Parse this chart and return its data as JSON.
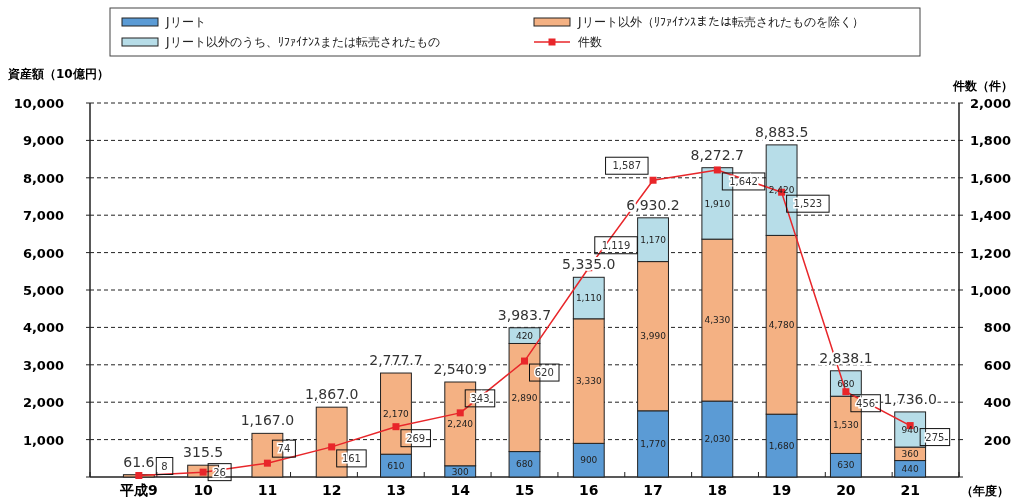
{
  "chart_data": {
    "type": "bar",
    "stacked": true,
    "categories": [
      "平成9",
      "10",
      "11",
      "12",
      "13",
      "14",
      "15",
      "16",
      "17",
      "18",
      "19",
      "20",
      "21"
    ],
    "series": [
      {
        "name": "Jリート",
        "color": "#5b9bd5",
        "values": [
          null,
          null,
          null,
          null,
          610,
          300,
          680,
          900,
          1770,
          2030,
          1680,
          630,
          440
        ],
        "value_labels": [
          null,
          null,
          null,
          null,
          "610",
          "300",
          "680",
          "900",
          "1,770",
          "2,030",
          "1,680",
          "630",
          "440"
        ]
      },
      {
        "name": "Jリート以外（ﾘﾌｧｲﾅﾝｽまたは転売されたものを除く）",
        "color": "#f4b183",
        "values": [
          61.6,
          315.5,
          1167,
          1867,
          2170,
          2240,
          2890,
          3330,
          3990,
          4330,
          4780,
          1530,
          360
        ],
        "value_labels": [
          null,
          null,
          null,
          null,
          "2,170",
          "2,240",
          "2,890",
          "3,330",
          "3,990",
          "4,330",
          "4,780",
          "1,530",
          "360"
        ]
      },
      {
        "name": "Jリート以外のうち、ﾘﾌｧｲﾅﾝｽまたは転売されたもの",
        "color": "#b7dde8",
        "values": [
          null,
          null,
          null,
          null,
          null,
          null,
          420,
          1110,
          1170,
          1910,
          2420,
          680,
          940
        ],
        "value_labels": [
          null,
          null,
          null,
          null,
          null,
          null,
          "420",
          "1,110",
          "1,170",
          "1,910",
          "2,420",
          "680",
          "940"
        ]
      },
      {
        "name": "件数",
        "type": "line",
        "axis": "y2",
        "color": "#e8262a",
        "marker": "square",
        "values": [
          8,
          26,
          74,
          161,
          269,
          343,
          620,
          1119,
          1587,
          1642,
          1523,
          456,
          275
        ],
        "value_labels": [
          "8",
          "26",
          "74",
          "161",
          "269",
          "343",
          "620",
          "1,119",
          "1,587",
          "1,642",
          "1,523",
          "456",
          "275"
        ]
      }
    ],
    "annotations": [
      {
        "text": "61.6",
        "x": "平成9",
        "y": 61.6
      },
      {
        "text": "315.5",
        "x": "10",
        "y": 315.5
      },
      {
        "text": "1,167.0",
        "x": "11",
        "y": 1167
      },
      {
        "text": "1,867.0",
        "x": "12",
        "y": 1867
      },
      {
        "text": "2,777.7",
        "x": "13",
        "y": 2777.7
      },
      {
        "text": "2,540.9",
        "x": "14",
        "y": 2540.9
      },
      {
        "text": "3,983.7",
        "x": "15",
        "y": 3983.7
      },
      {
        "text": "5,335.0",
        "x": "16",
        "y": 5335
      },
      {
        "text": "6,930.2",
        "x": "17",
        "y": 6930.2
      },
      {
        "text": "8,272.7",
        "x": "18",
        "y": 8272.7
      },
      {
        "text": "8,883.5",
        "x": "19",
        "y": 8883.5
      },
      {
        "text": "2,838.1",
        "x": "20",
        "y": 2838.1
      },
      {
        "text": "1,736.0",
        "x": "21",
        "y": 1736
      }
    ],
    "ylabel": "資産額（10億円）",
    "y2label": "件数（件）",
    "xlabel": "（年度）",
    "ylim": [
      0,
      10000
    ],
    "yticks": [
      {
        "value": 0,
        "label": null
      },
      {
        "value": 1000,
        "label": "1,000"
      },
      {
        "value": 2000,
        "label": "2,000"
      },
      {
        "value": 3000,
        "label": "3,000"
      },
      {
        "value": 4000,
        "label": "4,000"
      },
      {
        "value": 5000,
        "label": "5,000"
      },
      {
        "value": 6000,
        "label": "6,000"
      },
      {
        "value": 7000,
        "label": "7,000"
      },
      {
        "value": 8000,
        "label": "8,000"
      },
      {
        "value": 9000,
        "label": "9,000"
      },
      {
        "value": 10000,
        "label": "10,000"
      }
    ],
    "y2lim": [
      0,
      2000
    ],
    "y2ticks": [
      {
        "value": 0,
        "label": null
      },
      200,
      400,
      600,
      800,
      {
        "value": 1000,
        "label": "1,000"
      },
      {
        "value": 1200,
        "label": "1,200"
      },
      {
        "value": 1400,
        "label": "1,400"
      },
      {
        "value": 1600,
        "label": "1,600"
      },
      {
        "value": 1800,
        "label": "1,800"
      },
      {
        "value": 2000,
        "label": "2,000"
      }
    ],
    "grid": "y",
    "legend": "top"
  }
}
